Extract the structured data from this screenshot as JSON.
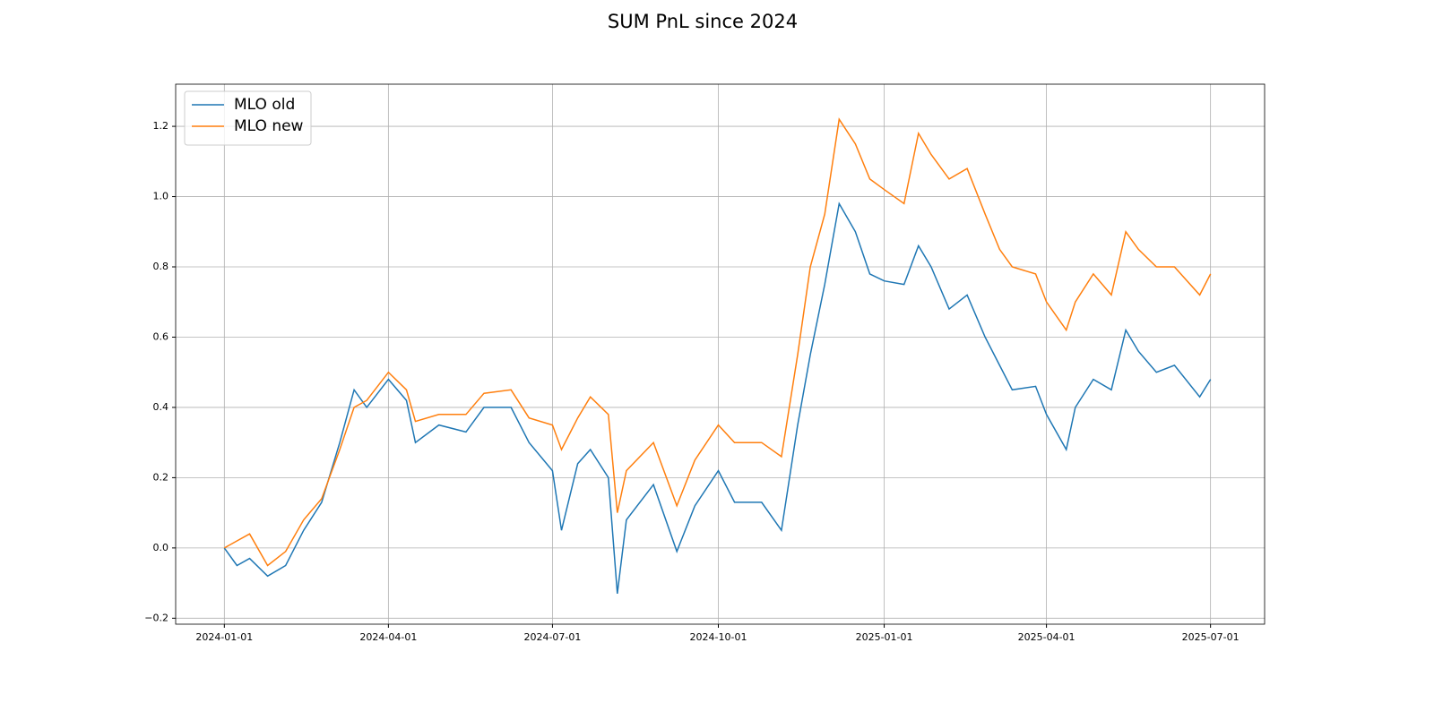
{
  "chart_data": {
    "type": "line",
    "title": "SUM PnL since 2024",
    "x": [
      "2024-01-01",
      "2024-01-08",
      "2024-01-15",
      "2024-01-25",
      "2024-02-04",
      "2024-02-14",
      "2024-02-24",
      "2024-03-05",
      "2024-03-13",
      "2024-03-20",
      "2024-04-01",
      "2024-04-11",
      "2024-04-16",
      "2024-04-29",
      "2024-05-14",
      "2024-05-24",
      "2024-06-08",
      "2024-06-18",
      "2024-07-01",
      "2024-07-06",
      "2024-07-15",
      "2024-07-22",
      "2024-08-01",
      "2024-08-06",
      "2024-08-11",
      "2024-08-26",
      "2024-09-08",
      "2024-09-18",
      "2024-10-01",
      "2024-10-10",
      "2024-10-25",
      "2024-11-05",
      "2024-11-14",
      "2024-11-21",
      "2024-11-29",
      "2024-12-07",
      "2024-12-16",
      "2024-12-24",
      "2025-01-01",
      "2025-01-12",
      "2025-01-20",
      "2025-01-27",
      "2025-02-06",
      "2025-02-16",
      "2025-02-26",
      "2025-03-06",
      "2025-03-13",
      "2025-03-26",
      "2025-04-01",
      "2025-04-12",
      "2025-04-17",
      "2025-04-27",
      "2025-05-07",
      "2025-05-15",
      "2025-05-22",
      "2025-06-01",
      "2025-06-11",
      "2025-06-25",
      "2025-07-01"
    ],
    "series": [
      {
        "name": "MLO old",
        "color": "#1f77b4",
        "values": [
          0.0,
          -0.05,
          -0.03,
          -0.08,
          -0.05,
          0.05,
          0.13,
          0.3,
          0.45,
          0.4,
          0.48,
          0.42,
          0.3,
          0.35,
          0.33,
          0.4,
          0.4,
          0.3,
          0.22,
          0.05,
          0.24,
          0.28,
          0.2,
          -0.13,
          0.08,
          0.18,
          -0.01,
          0.12,
          0.22,
          0.13,
          0.13,
          0.05,
          0.35,
          0.55,
          0.75,
          0.98,
          0.9,
          0.78,
          0.76,
          0.75,
          0.86,
          0.8,
          0.68,
          0.72,
          0.6,
          0.52,
          0.45,
          0.46,
          0.38,
          0.28,
          0.4,
          0.48,
          0.45,
          0.62,
          0.56,
          0.5,
          0.52,
          0.43,
          0.48
        ]
      },
      {
        "name": "MLO new",
        "color": "#ff7f0e",
        "values": [
          0.0,
          0.02,
          0.04,
          -0.05,
          -0.01,
          0.08,
          0.14,
          0.28,
          0.4,
          0.42,
          0.5,
          0.45,
          0.36,
          0.38,
          0.38,
          0.44,
          0.45,
          0.37,
          0.35,
          0.28,
          0.37,
          0.43,
          0.38,
          0.1,
          0.22,
          0.3,
          0.12,
          0.25,
          0.35,
          0.3,
          0.3,
          0.26,
          0.55,
          0.8,
          0.95,
          1.22,
          1.15,
          1.05,
          1.02,
          0.98,
          1.18,
          1.12,
          1.05,
          1.08,
          0.95,
          0.85,
          0.8,
          0.78,
          0.7,
          0.62,
          0.7,
          0.78,
          0.72,
          0.9,
          0.85,
          0.8,
          0.8,
          0.72,
          0.78
        ]
      }
    ],
    "xlim": [
      "2023-12-05",
      "2025-07-31"
    ],
    "xticks": [
      "2024-01-01",
      "2024-04-01",
      "2024-07-01",
      "2024-10-01",
      "2025-01-01",
      "2025-04-01",
      "2025-07-01"
    ],
    "ylim": [
      -0.217,
      1.32
    ],
    "yticks": [
      {
        "value": -0.2,
        "label": "−0.2"
      },
      {
        "value": 0,
        "label": "0.0"
      },
      0.2,
      0.4,
      0.6,
      0.8,
      {
        "value": 1,
        "label": "1.0"
      },
      1.2
    ],
    "grid": true,
    "legend": "upper left"
  }
}
